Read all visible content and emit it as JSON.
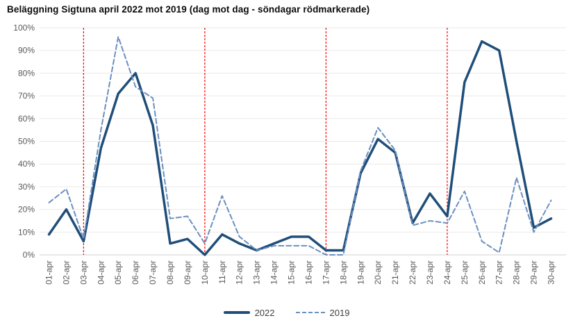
{
  "title": "Beläggning Sigtuna april 2022 mot 2019 (dag mot dag - söndagar rödmarkerade)",
  "colors": {
    "background": "#ffffff",
    "gridline": "#e9e9e9",
    "axis_line": "#d2d2d2",
    "axis_label": "#595959",
    "legend_text": "#404040",
    "title_text": "#0b0b0b"
  },
  "chart_data": {
    "type": "line",
    "title": "Beläggning Sigtuna april 2022 mot 2019 (dag mot dag - söndagar rödmarkerade)",
    "xlabel": "",
    "ylabel": "",
    "ylim": [
      0,
      100
    ],
    "y_tick_step": 10,
    "y_ticks": [
      "0%",
      "10%",
      "20%",
      "30%",
      "40%",
      "50%",
      "60%",
      "70%",
      "80%",
      "90%",
      "100%"
    ],
    "grid": true,
    "legend_position": "bottom",
    "categories": [
      "01-apr",
      "02-apr",
      "03-apr",
      "04-apr",
      "05-apr",
      "06-apr",
      "07-apr",
      "08-apr",
      "09-apr",
      "10-apr",
      "11-apr",
      "12-apr",
      "13-apr",
      "14-apr",
      "15-apr",
      "16-apr",
      "17-apr",
      "18-apr",
      "19-apr",
      "20-apr",
      "21-apr",
      "22-apr",
      "23-apr",
      "24-apr",
      "25-apr",
      "26-apr",
      "27-apr",
      "28-apr",
      "29-apr",
      "30-apr"
    ],
    "series": [
      {
        "name": "2022",
        "style": "solid",
        "color": "#1f4e79",
        "values": [
          9,
          20,
          6,
          47,
          71,
          80,
          57,
          5,
          7,
          0,
          9,
          5,
          2,
          5,
          8,
          8,
          2,
          2,
          36,
          51,
          45,
          14,
          27,
          17,
          76,
          94,
          90,
          50,
          12,
          16
        ]
      },
      {
        "name": "2019",
        "style": "dashed",
        "color": "#6b8fbf",
        "values": [
          23,
          29,
          7,
          55,
          96,
          74,
          69,
          16,
          17,
          5,
          26,
          8,
          2,
          4,
          4,
          4,
          0,
          0,
          37,
          56,
          46,
          13,
          15,
          14,
          28,
          6,
          1,
          34,
          10,
          24
        ]
      }
    ],
    "sunday_marker_categories": [
      "03-apr",
      "10-apr",
      "17-apr",
      "24-apr"
    ],
    "sunday_marker_color": "#ff0000"
  }
}
